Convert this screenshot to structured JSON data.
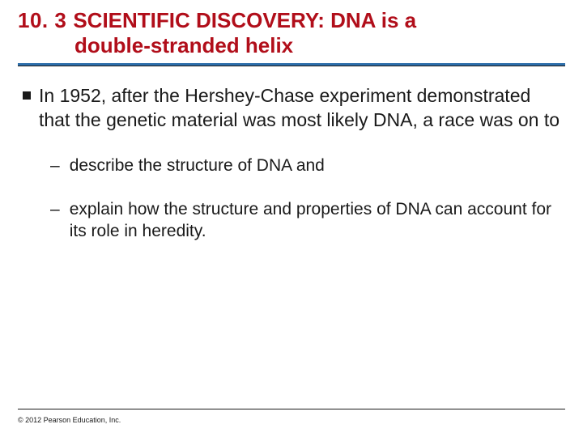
{
  "colors": {
    "title_color": "#b10e1a",
    "divider_color": "#2d6eaa",
    "text_color": "#1a1a1a",
    "background": "#ffffff"
  },
  "typography": {
    "title_fontsize": 26,
    "body_fontsize": 23,
    "sub_fontsize": 21,
    "copyright_fontsize": 9,
    "font_family": "Arial"
  },
  "header": {
    "section_number": "10. 3",
    "title_part1": "SCIENTIFIC DISCOVERY: DNA is a",
    "title_part2": "double-stranded helix"
  },
  "body": {
    "main_bullet": "In 1952, after the Hershey-Chase experiment demonstrated that the genetic material was most likely DNA, a race was on to",
    "sub_bullets": [
      "describe the structure of DNA and",
      "explain how the structure and properties of DNA can account for its role in heredity."
    ]
  },
  "footer": {
    "copyright": "© 2012 Pearson Education, Inc."
  }
}
